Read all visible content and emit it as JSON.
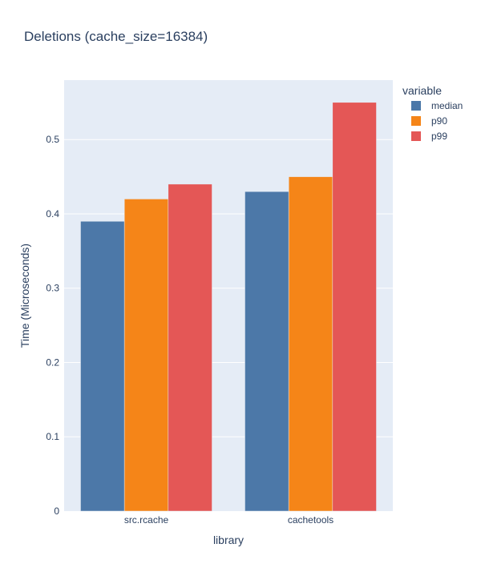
{
  "chart_data": {
    "type": "bar",
    "title": "Deletions (cache_size=16384)",
    "xlabel": "library",
    "ylabel": "Time (Microseconds)",
    "categories": [
      "src.rcache",
      "cachetools"
    ],
    "ylim": [
      0,
      0.58
    ],
    "yticks": [
      0,
      0.1,
      0.2,
      0.3,
      0.4,
      0.5
    ],
    "ytick_labels": [
      "0",
      "0.1",
      "0.2",
      "0.3",
      "0.4",
      "0.5"
    ],
    "grid": true,
    "legend": {
      "title": "variable",
      "placement": "top-right"
    },
    "series": [
      {
        "name": "median",
        "color": "#4c78a8",
        "values": [
          0.39,
          0.43
        ]
      },
      {
        "name": "p90",
        "color": "#f58518",
        "values": [
          0.42,
          0.45
        ]
      },
      {
        "name": "p99",
        "color": "#e45756",
        "values": [
          0.44,
          0.55
        ]
      }
    ]
  }
}
